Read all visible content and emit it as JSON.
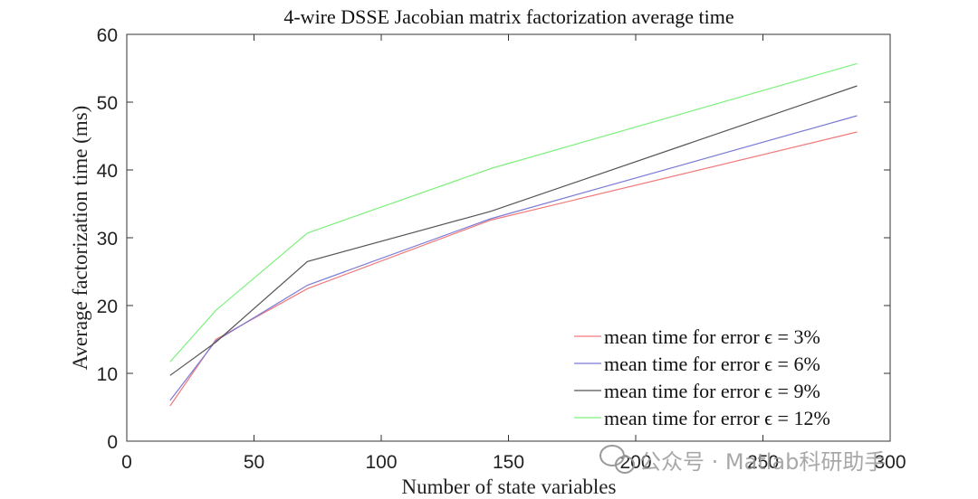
{
  "chart_data": {
    "type": "line",
    "title": "4-wire DSSE Jacobian matrix factorization average time",
    "xlabel": "Number of state variables",
    "ylabel": "Average factorization time (ms)",
    "xlim": [
      0,
      300
    ],
    "ylim": [
      0,
      60
    ],
    "xticks": [
      0,
      50,
      100,
      150,
      200,
      250,
      300
    ],
    "yticks": [
      0,
      10,
      20,
      30,
      40,
      50,
      60
    ],
    "grid": false,
    "legend_position": "bottom-right",
    "x": [
      17,
      35,
      71,
      143,
      287
    ],
    "series": [
      {
        "name": "mean time for error ϵ = 3%",
        "color": "#f0797a",
        "values": [
          5.2,
          15.0,
          22.5,
          32.6,
          45.6
        ]
      },
      {
        "name": "mean time for error ϵ = 6%",
        "color": "#7b7bd6",
        "values": [
          6.0,
          14.8,
          23.0,
          32.8,
          48.0
        ]
      },
      {
        "name": "mean time for error ϵ = 9%",
        "color": "#555555",
        "values": [
          9.7,
          14.6,
          26.5,
          33.9,
          52.4
        ]
      },
      {
        "name": "mean time for error ϵ = 12%",
        "color": "#7ef07e",
        "values": [
          11.7,
          19.3,
          30.7,
          40.2,
          55.7
        ]
      }
    ]
  },
  "watermark": {
    "text": "公众号 · Matlab科研助手",
    "icon": "wechat-icon"
  }
}
